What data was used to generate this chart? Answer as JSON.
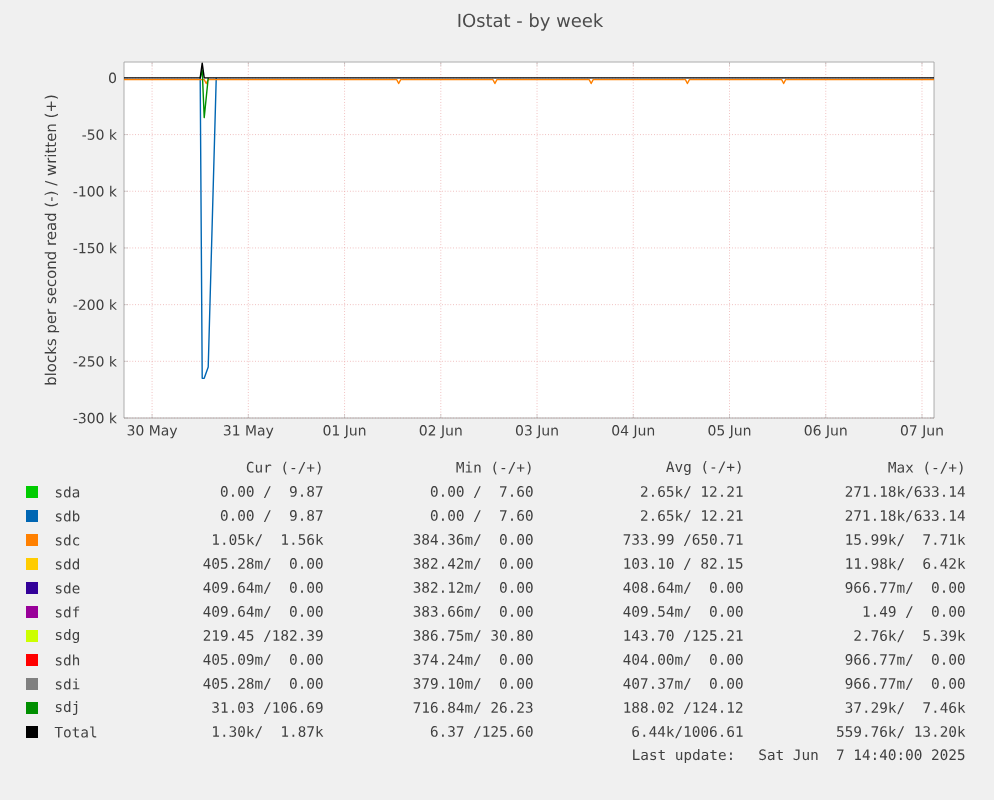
{
  "chart_data": {
    "type": "line",
    "title": "IOstat - by week",
    "ylabel": "blocks per second read (-) / written (+)",
    "x": [
      "2025-05-30T05:00",
      "2025-05-31T00:00",
      "2025-05-31T00:30",
      "2025-05-31T01:00",
      "2025-05-31T02:00",
      "2025-05-31T04:00",
      "2025-05-31T05:00",
      "2025-06-07T15:00"
    ],
    "xlim": [
      "2025-05-30T05:00",
      "2025-06-07T15:00"
    ],
    "xticks": [
      {
        "value": "2025-05-30T12:00",
        "label": "30 May"
      },
      {
        "value": "2025-05-31T12:00",
        "label": "31 May"
      },
      {
        "value": "2025-06-01T12:00",
        "label": "01 Jun"
      },
      {
        "value": "2025-06-02T12:00",
        "label": "02 Jun"
      },
      {
        "value": "2025-06-03T12:00",
        "label": "03 Jun"
      },
      {
        "value": "2025-06-04T12:00",
        "label": "04 Jun"
      },
      {
        "value": "2025-06-05T12:00",
        "label": "05 Jun"
      },
      {
        "value": "2025-06-06T12:00",
        "label": "06 Jun"
      },
      {
        "value": "2025-06-07T12:00",
        "label": "07 Jun"
      }
    ],
    "ylim": [
      -300000,
      14000
    ],
    "yticks": [
      0,
      {
        "value": -50000,
        "label": "-50 k"
      },
      {
        "value": -100000,
        "label": "-100 k"
      },
      {
        "value": -150000,
        "label": "-150 k"
      },
      {
        "value": -200000,
        "label": "-200 k"
      },
      {
        "value": -250000,
        "label": "-250 k"
      },
      {
        "value": -300000,
        "label": "-300 k"
      }
    ],
    "grid": true,
    "legend": "bottom",
    "marker": "none",
    "line_style": "solid",
    "series": [
      {
        "name": "sda",
        "color": "#00cc00",
        "values": [
          null,
          null,
          null,
          null,
          null,
          null,
          null,
          null
        ]
      },
      {
        "name": "sdb",
        "color": "#0066b3",
        "values": [
          null,
          0,
          -265000,
          -265000,
          -255000,
          0,
          null,
          null
        ]
      },
      {
        "name": "sdc",
        "color": "#ff8000",
        "x": [
          "2025-05-30T05:00",
          "2025-05-31T01:00",
          "2025-05-31T01:30",
          "2025-05-31T02:00",
          "2025-06-02T01:00",
          "2025-06-02T01:30",
          "2025-06-02T02:00",
          "2025-06-03T01:00",
          "2025-06-03T01:30",
          "2025-06-03T02:00",
          "2025-06-04T01:00",
          "2025-06-04T01:30",
          "2025-06-04T02:00",
          "2025-06-05T01:00",
          "2025-06-05T01:30",
          "2025-06-05T02:00",
          "2025-06-06T01:00",
          "2025-06-06T01:30",
          "2025-06-06T02:00",
          "2025-06-07T15:00"
        ],
        "values": [
          -1500,
          -1500,
          -5000,
          -1500,
          -1500,
          -5000,
          -1500,
          -1500,
          -5000,
          -1500,
          -1500,
          -5000,
          -1500,
          -1500,
          -5000,
          -1500,
          -1500,
          -5000,
          -1500,
          -1500
        ]
      },
      {
        "name": "sdd",
        "color": "#ffcc00",
        "values": [
          null,
          null,
          null,
          null,
          null,
          null,
          null,
          null
        ]
      },
      {
        "name": "sde",
        "color": "#330099",
        "values": [
          null,
          null,
          null,
          null,
          null,
          null,
          null,
          null
        ]
      },
      {
        "name": "sdf",
        "color": "#990099",
        "values": [
          null,
          null,
          null,
          null,
          null,
          null,
          null,
          null
        ]
      },
      {
        "name": "sdg",
        "color": "#ccff00",
        "values": [
          null,
          null,
          null,
          null,
          null,
          null,
          null,
          null
        ]
      },
      {
        "name": "sdh",
        "color": "#ff0000",
        "values": [
          null,
          null,
          null,
          null,
          null,
          null,
          null,
          null
        ]
      },
      {
        "name": "sdi",
        "color": "#808080",
        "values": [
          null,
          null,
          null,
          null,
          null,
          null,
          null,
          null
        ]
      },
      {
        "name": "sdj",
        "color": "#008f00",
        "values": [
          null,
          0,
          7000,
          -35000,
          0,
          null,
          null,
          null
        ]
      },
      {
        "name": "Total",
        "color": "#000000",
        "values": [
          0,
          0,
          13000,
          0,
          0,
          0,
          0,
          0
        ]
      }
    ],
    "annotations": [
      "Cur (-/+)",
      "Min (-/+)",
      "Avg (-/+)",
      "Max (-/+)",
      "0.00 /  9.87",
      "0.00 /  7.60",
      "2.65k/ 12.21",
      "271.18k/633.14",
      "0.00 /  9.87",
      "0.00 /  7.60",
      "2.65k/ 12.21",
      "271.18k/633.14",
      "1.05k/  1.56k",
      "384.36m/  0.00",
      "733.99 /650.71",
      "15.99k/  7.71k",
      "405.28m/  0.00",
      "382.42m/  0.00",
      "103.10 / 82.15",
      "11.98k/  6.42k",
      "409.64m/  0.00",
      "382.12m/  0.00",
      "408.64m/  0.00",
      "966.77m/  0.00",
      "409.64m/  0.00",
      "383.66m/  0.00",
      "409.54m/  0.00",
      "1.49 /  0.00",
      "219.45 /182.39",
      "386.75m/ 30.80",
      "143.70 /125.21",
      "2.76k/  5.39k",
      "405.09m/  0.00",
      "374.24m/  0.00",
      "404.00m/  0.00",
      "966.77m/  0.00",
      "405.28m/  0.00",
      "379.10m/  0.00",
      "407.37m/  0.00",
      "966.77m/  0.00",
      "31.03 /106.69",
      "716.84m/ 26.23",
      "188.02 /124.12",
      "37.29k/  7.46k",
      "1.30k/  1.87k",
      "6.37 /125.60",
      "6.44k/1006.61",
      "559.76k/ 13.20k",
      "Last update:  Sat Jun  7 14:40:00 2025"
    ]
  }
}
